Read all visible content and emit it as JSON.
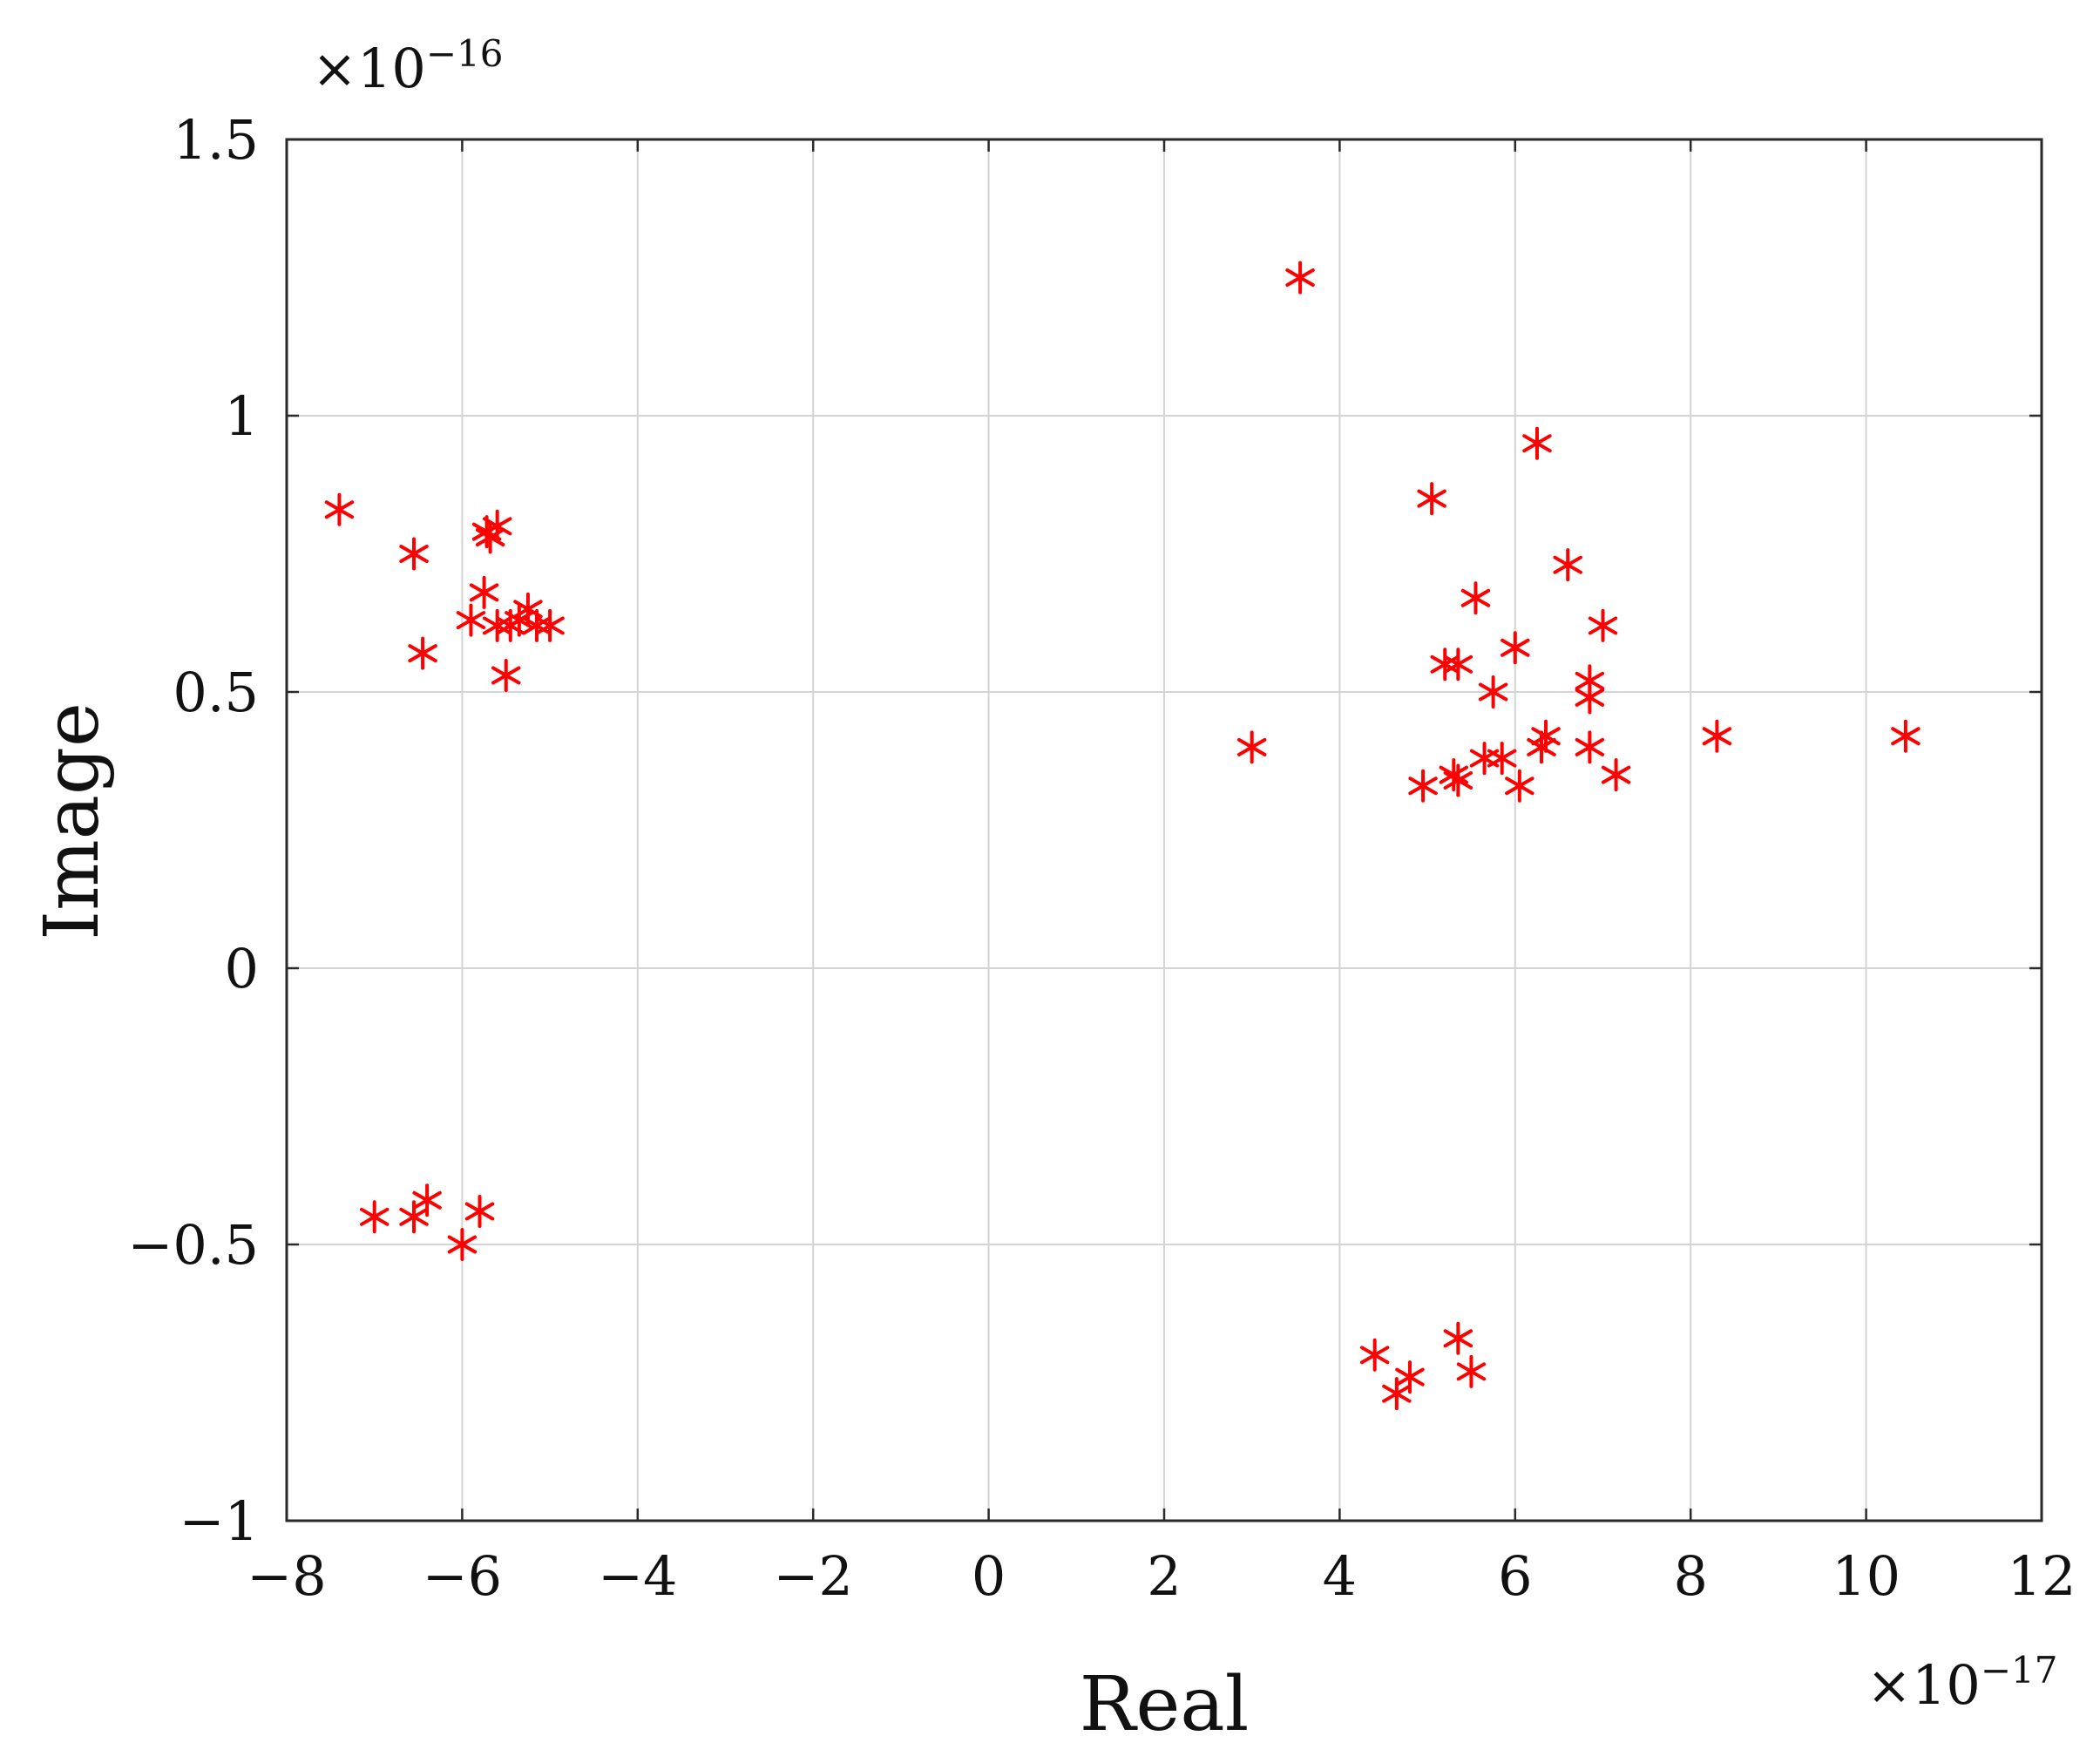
{
  "chart_data": {
    "type": "scatter",
    "xlabel": "Real",
    "ylabel": "Image",
    "xlim": [
      -8,
      12
    ],
    "ylim": [
      -1,
      1.5
    ],
    "x_ticks": [
      -8,
      -6,
      -4,
      -2,
      0,
      2,
      4,
      6,
      8,
      10,
      12
    ],
    "y_ticks": [
      -1,
      -0.5,
      0,
      0.5,
      1,
      1.5
    ],
    "x_tick_labels": [
      "−8",
      "−6",
      "−4",
      "−2",
      "0",
      "2",
      "4",
      "6",
      "8",
      "10",
      "12"
    ],
    "y_tick_labels": [
      "−1",
      "−0.5",
      "0",
      "0.5",
      "1",
      "1.5"
    ],
    "x_multiplier": {
      "base": "×10",
      "exponent": "−17"
    },
    "y_multiplier": {
      "base": "×10",
      "exponent": "−16"
    },
    "grid": true,
    "marker": "asterisk",
    "marker_color": "#ff0000",
    "series": [
      {
        "points": [
          [
            -7.4,
            0.83
          ],
          [
            -6.55,
            0.75
          ],
          [
            -6.45,
            0.57
          ],
          [
            -5.9,
            0.63
          ],
          [
            -5.75,
            0.68
          ],
          [
            -5.72,
            0.79
          ],
          [
            -5.6,
            0.8
          ],
          [
            -5.68,
            0.78
          ],
          [
            -5.6,
            0.62
          ],
          [
            -5.5,
            0.53
          ],
          [
            -5.45,
            0.62
          ],
          [
            -5.35,
            0.63
          ],
          [
            -5.25,
            0.65
          ],
          [
            -5.15,
            0.62
          ],
          [
            -5.0,
            0.62
          ],
          [
            -7.0,
            -0.45
          ],
          [
            -6.55,
            -0.45
          ],
          [
            -6.4,
            -0.42
          ],
          [
            -5.8,
            -0.44
          ],
          [
            -6.0,
            -0.5
          ],
          [
            3.55,
            1.25
          ],
          [
            3.0,
            0.4
          ],
          [
            5.05,
            0.85
          ],
          [
            6.25,
            0.95
          ],
          [
            6.6,
            0.73
          ],
          [
            5.55,
            0.67
          ],
          [
            7.0,
            0.62
          ],
          [
            6.0,
            0.58
          ],
          [
            5.2,
            0.55
          ],
          [
            5.35,
            0.55
          ],
          [
            6.85,
            0.52
          ],
          [
            5.75,
            0.5
          ],
          [
            6.85,
            0.49
          ],
          [
            6.35,
            0.42
          ],
          [
            6.3,
            0.4
          ],
          [
            6.85,
            0.4
          ],
          [
            5.65,
            0.38
          ],
          [
            5.85,
            0.38
          ],
          [
            5.3,
            0.35
          ],
          [
            5.35,
            0.34
          ],
          [
            7.15,
            0.35
          ],
          [
            4.95,
            0.33
          ],
          [
            6.05,
            0.33
          ],
          [
            8.3,
            0.42
          ],
          [
            10.45,
            0.42
          ],
          [
            4.4,
            -0.7
          ],
          [
            4.8,
            -0.74
          ],
          [
            4.65,
            -0.77
          ],
          [
            5.35,
            -0.67
          ],
          [
            5.5,
            -0.73
          ]
        ]
      }
    ]
  }
}
